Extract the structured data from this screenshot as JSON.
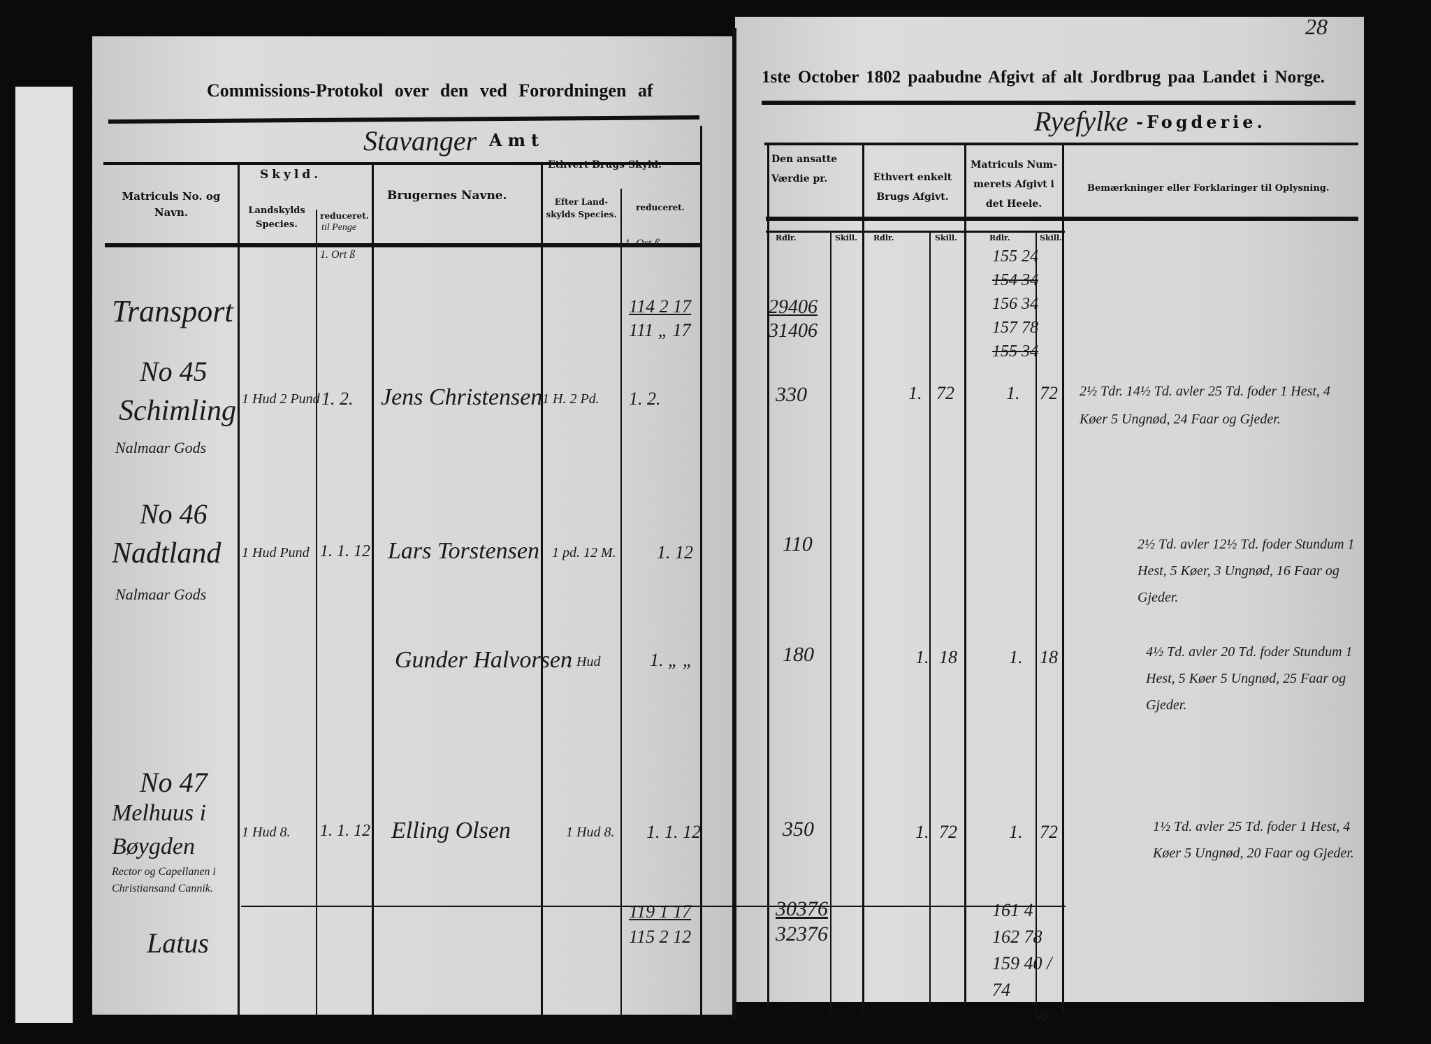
{
  "page_number": "28",
  "title_left": "Commissions-Protokol over den ved Forordningen af",
  "title_right": "1ste October 1802 paabudne Afgivt af alt Jordbrug paa Landet i Norge.",
  "amt": {
    "handwritten": "Stavanger",
    "printed": "Amt"
  },
  "fogderie": {
    "handwritten": "Ryefylke",
    "printed": "-Fogderie."
  },
  "headers": {
    "matricul": "Matriculs No. og Navn.",
    "skyld": "Skyld.",
    "landskyld_species": "Landskylds Species.",
    "reduceret": "reduceret.",
    "reduceret_hw": "til Penge",
    "brugernes_navne": "Brugernes Navne.",
    "ethvert_brugs_skyld": "Ethvert Brugs Skyld.",
    "efter_landskylds": "Efter Land-skylds Species.",
    "reduceret2": "reduceret.",
    "vaerdie": "Den ansatte Værdie pr.",
    "enkelt_afgivt": "Ethvert enkelt Brugs Afgivt.",
    "matricul_afgivt": "Matriculs Num-merets Afgivt i det Heele.",
    "bemaerkninger": "Bemærkninger eller Forklaringer til Oplysning.",
    "rdlr": "Rdlr.",
    "skill": "Skill."
  },
  "unit_row": {
    "left1": "1. Ort ß",
    "left2": "1. Ort ß"
  },
  "transport": {
    "label": "Transport",
    "skyld_a": "114 2 17",
    "skyld_b": "111 „ 17",
    "vaerdie_a": "29406",
    "vaerdie_b": "31406",
    "heele": [
      "155 24",
      "154 34",
      "156 34",
      "157 78",
      "155 34"
    ]
  },
  "entries": [
    {
      "no": "No 45",
      "name": "Schimling",
      "owner": "Nalmaar Gods",
      "landskyld": "1 Hud 2 Pund",
      "reduceret": "1. 2.",
      "bruger": "Jens Christensen",
      "efter": "1 H. 2 Pd.",
      "red2": "1. 2.",
      "vaerdie": "330",
      "afgivt_r": "1.",
      "afgivt_s": "72",
      "heele_r": "1.",
      "heele_s": "72",
      "remark": "2½ Tdr. 14½ Td. avler 25 Td. foder 1 Hest, 4 Køer 5 Ungnød, 24 Faar og Gjeder."
    },
    {
      "no": "No 46",
      "name": "Nadtland",
      "owner": "Nalmaar Gods",
      "landskyld": "1 Hud Pund",
      "reduceret": "1. 1. 12",
      "bruger": "Lars Torstensen",
      "efter": "1 pd. 12 M.",
      "red2": "1. 12",
      "vaerdie": "110",
      "afgivt_r": "",
      "afgivt_s": "",
      "heele_r": "",
      "heele_s": "",
      "remark": "2½ Td. avler 12½ Td. foder Stundum 1 Hest, 5 Køer, 3 Ungnød, 16 Faar og Gjeder."
    },
    {
      "no": "",
      "name": "",
      "owner": "",
      "landskyld": "",
      "reduceret": "",
      "bruger": "Gunder Halvorsen",
      "efter": "1 Hud",
      "red2": "1. „ „",
      "vaerdie": "180",
      "afgivt_r": "1.",
      "afgivt_s": "18",
      "heele_r": "1.",
      "heele_s": "18",
      "remark": "4½ Td. avler 20 Td. foder Stundum 1 Hest, 5 Køer 5 Ungnød, 25 Faar og Gjeder."
    },
    {
      "no": "No 47",
      "name": "Melhuus i Bøygden",
      "owner": "Rector og Capellanen i Christiansand Cannik.",
      "landskyld": "1 Hud 8.",
      "reduceret": "1. 1. 12",
      "bruger": "Elling Olsen",
      "efter": "1 Hud 8.",
      "red2": "1. 1. 12",
      "vaerdie": "350",
      "afgivt_r": "1.",
      "afgivt_s": "72",
      "heele_r": "1.",
      "heele_s": "72",
      "remark": "1½ Td. avler 25 Td. foder 1 Hest, 4 Køer 5 Ungnød, 20 Faar og Gjeder."
    }
  ],
  "latus": {
    "label": "Latus",
    "skyld_a": "119 1 17",
    "skyld_b": "115 2 12",
    "vaerdie_a": "30376",
    "vaerdie_b": "32376",
    "heele": [
      "161 4",
      "162 78",
      "159 40 / 74",
      "90"
    ]
  }
}
